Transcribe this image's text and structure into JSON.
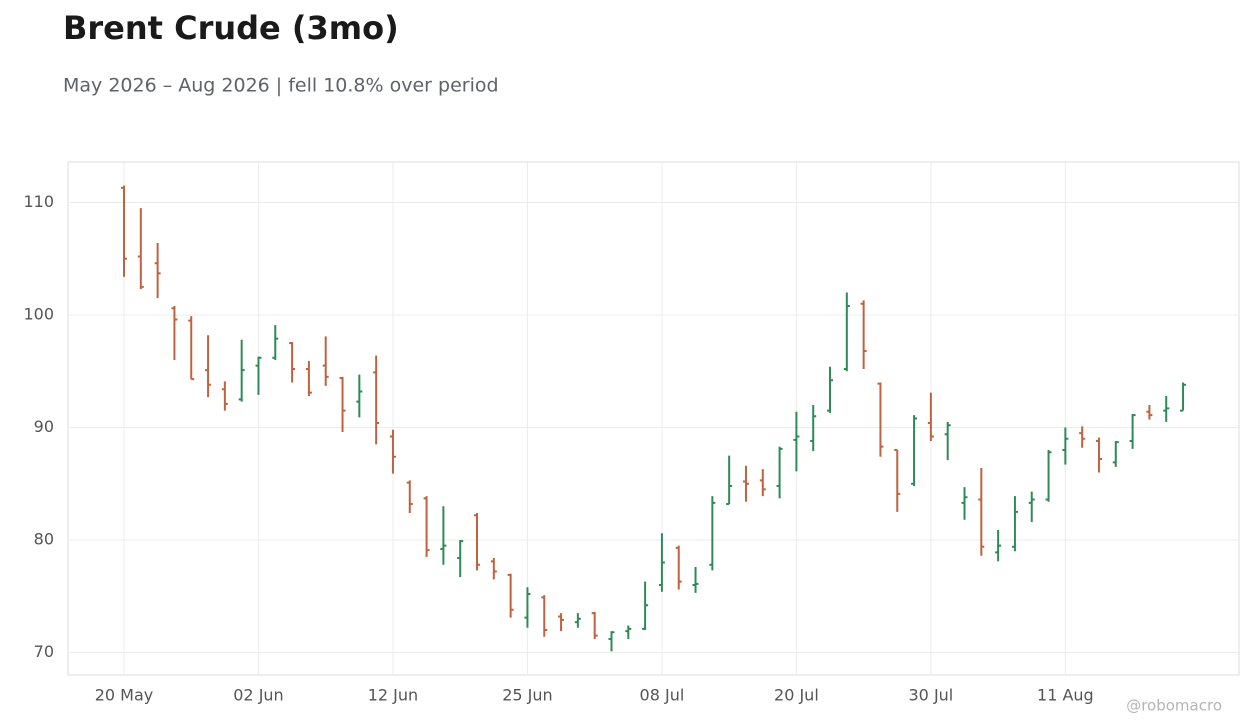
{
  "chart_data": {
    "type": "ohlc",
    "title": "Brent Crude (3mo)",
    "subtitle": "May 2026 – Aug 2026 | fell 10.8% over period",
    "credit": "@robomacro",
    "categories": [
      "20 May",
      null,
      null,
      null,
      null,
      null,
      null,
      null,
      "02 Jun",
      null,
      null,
      null,
      null,
      null,
      null,
      null,
      "12 Jun",
      null,
      null,
      null,
      null,
      null,
      null,
      null,
      "25 Jun",
      null,
      null,
      null,
      null,
      null,
      null,
      null,
      "08 Jul",
      null,
      null,
      null,
      null,
      null,
      null,
      null,
      "20 Jul",
      null,
      null,
      null,
      null,
      null,
      null,
      null,
      "30 Jul",
      null,
      null,
      null,
      null,
      null,
      null,
      null,
      "11 Aug",
      null,
      null,
      null,
      null,
      null,
      null,
      null
    ],
    "open": [
      111.3,
      105.2,
      104.6,
      100.6,
      99.5,
      95.1,
      93.4,
      92.5,
      95.5,
      96.2,
      97.5,
      95.2,
      95.5,
      94.4,
      92.3,
      94.9,
      89.2,
      85.1,
      83.7,
      79.2,
      78.4,
      82.2,
      78.1,
      76.9,
      73.1,
      74.9,
      73.2,
      72.7,
      73.5,
      71.2,
      71.9,
      72.1,
      76.0,
      79.3,
      76.0,
      77.8,
      83.2,
      85.2,
      85.3,
      84.8,
      88.9,
      88.8,
      91.5,
      95.2,
      101.0,
      93.9,
      88.0,
      85.0,
      90.4,
      89.4,
      83.3,
      83.6,
      78.9,
      79.4,
      83.3,
      83.6,
      88.0,
      89.5,
      88.8,
      86.9,
      88.8,
      91.4,
      91.5,
      91.5
    ],
    "high": [
      111.5,
      109.5,
      106.4,
      100.8,
      99.9,
      98.2,
      94.1,
      97.8,
      96.3,
      99.1,
      97.6,
      95.9,
      98.1,
      94.5,
      94.7,
      96.4,
      89.8,
      85.3,
      83.9,
      83.0,
      80.0,
      82.4,
      78.4,
      77.0,
      75.8,
      75.1,
      73.5,
      73.5,
      73.6,
      71.9,
      72.4,
      76.3,
      80.6,
      79.5,
      77.6,
      83.9,
      87.5,
      86.6,
      86.3,
      88.3,
      91.4,
      92.0,
      95.4,
      102.0,
      101.3,
      94.0,
      88.0,
      91.1,
      93.1,
      90.5,
      84.7,
      86.4,
      80.9,
      83.9,
      84.3,
      88.0,
      90.0,
      90.1,
      89.1,
      88.8,
      91.2,
      92.0,
      92.8,
      94.0
    ],
    "low": [
      103.4,
      102.3,
      101.5,
      96.0,
      94.3,
      92.7,
      91.5,
      92.3,
      92.9,
      96.0,
      94.0,
      92.8,
      93.7,
      89.6,
      90.9,
      88.5,
      85.9,
      82.4,
      78.5,
      77.8,
      76.7,
      77.3,
      76.5,
      73.1,
      72.2,
      71.4,
      71.9,
      72.2,
      71.2,
      70.1,
      71.2,
      72.0,
      75.4,
      75.6,
      75.3,
      77.3,
      83.2,
      83.4,
      83.9,
      83.7,
      86.1,
      87.9,
      91.3,
      95.0,
      95.2,
      87.4,
      82.5,
      84.8,
      88.8,
      87.1,
      81.8,
      78.6,
      78.1,
      79.0,
      81.6,
      83.4,
      86.7,
      88.2,
      86.0,
      86.5,
      88.1,
      90.7,
      90.5,
      91.5
    ],
    "close": [
      105.0,
      102.5,
      103.7,
      99.6,
      94.3,
      93.8,
      92.1,
      95.1,
      96.2,
      97.9,
      95.2,
      93.1,
      94.5,
      91.5,
      93.2,
      90.4,
      87.4,
      83.2,
      79.1,
      79.5,
      79.9,
      77.8,
      77.2,
      73.8,
      75.2,
      72.0,
      72.9,
      73.0,
      71.5,
      71.8,
      72.1,
      74.2,
      78.0,
      76.3,
      76.1,
      83.3,
      84.8,
      85.0,
      84.5,
      88.1,
      89.2,
      91.0,
      94.2,
      100.8,
      96.8,
      88.3,
      84.1,
      90.8,
      89.2,
      90.2,
      83.8,
      79.4,
      79.5,
      82.5,
      83.6,
      87.8,
      89.0,
      89.0,
      87.2,
      88.7,
      91.1,
      91.1,
      91.7,
      93.8
    ],
    "up_color": "#2e8b57",
    "down_color": "#c0623f",
    "ylim": [
      68,
      113.6
    ],
    "yticks": [
      70,
      80,
      90,
      100,
      110
    ],
    "grid": true
  }
}
